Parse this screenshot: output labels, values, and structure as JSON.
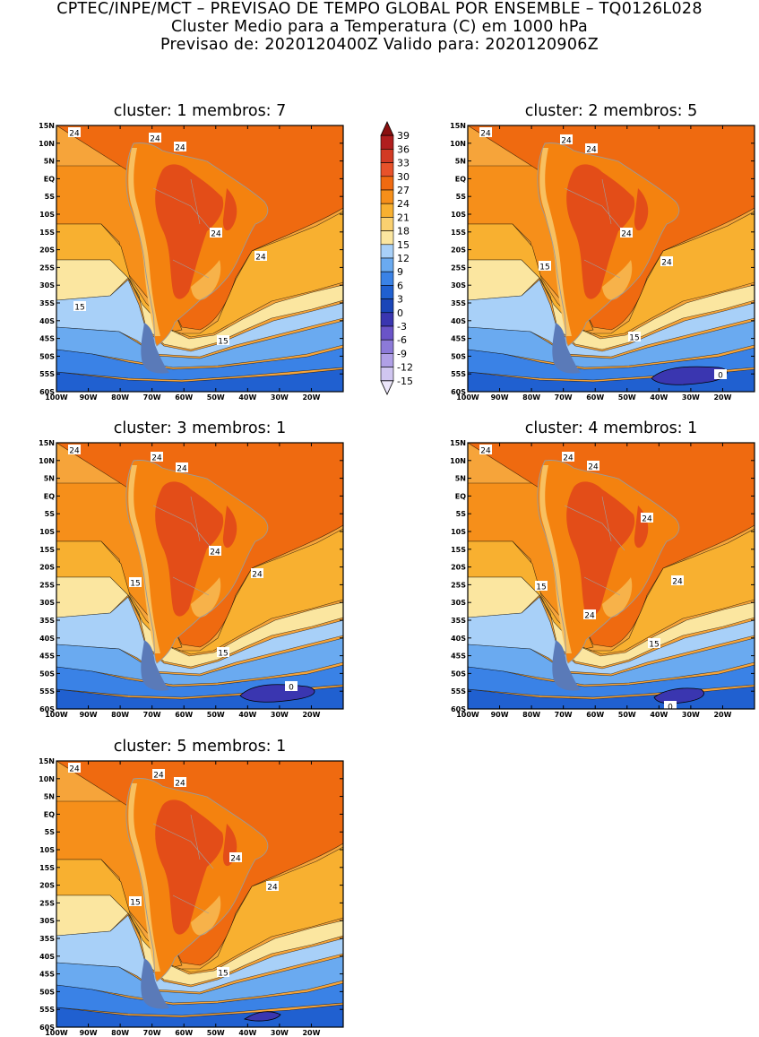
{
  "header": {
    "line1": "CPTEC/INPE/MCT – PREVISAO DE TEMPO GLOBAL POR ENSEMBLE – TQ0126L028",
    "line2": "Cluster Medio para a Temperatura (C) em 1000 hPa",
    "line3": "Previsao de: 2020120400Z    Valido para: 2020120906Z"
  },
  "map_axes": {
    "lat_labels": [
      "15N",
      "10N",
      "5N",
      "EQ",
      "5S",
      "10S",
      "15S",
      "20S",
      "25S",
      "30S",
      "35S",
      "40S",
      "45S",
      "50S",
      "55S",
      "60S"
    ],
    "lon_labels": [
      "100W",
      "90W",
      "80W",
      "70W",
      "60W",
      "50W",
      "40W",
      "30W",
      "20W"
    ],
    "lat_range": [
      -60,
      15
    ],
    "lon_range": [
      -100,
      -10
    ]
  },
  "panels": [
    {
      "title": "cluster: 1   membros: 7",
      "contour_labels": [
        "24",
        "24",
        "24",
        "24",
        "24",
        "15",
        "15"
      ]
    },
    {
      "title": "cluster: 2   membros: 5",
      "contour_labels": [
        "24",
        "24",
        "24",
        "24",
        "24",
        "15",
        "15",
        "0"
      ]
    },
    {
      "title": "cluster: 3   membros: 1",
      "contour_labels": [
        "24",
        "24",
        "24",
        "24",
        "24",
        "15",
        "15",
        "0"
      ]
    },
    {
      "title": "cluster: 4   membros: 1",
      "contour_labels": [
        "24",
        "24",
        "24",
        "24",
        "24",
        "24",
        "15",
        "15",
        "0"
      ]
    },
    {
      "title": "cluster: 5   membros: 1",
      "contour_labels": [
        "24",
        "24",
        "24",
        "24",
        "24",
        "15",
        "15"
      ]
    }
  ],
  "colorbar": {
    "labels": [
      "39",
      "36",
      "33",
      "30",
      "27",
      "24",
      "21",
      "18",
      "15",
      "12",
      "9",
      "6",
      "3",
      "0",
      "-3",
      "-6",
      "-9",
      "-12",
      "-15"
    ],
    "colors": [
      "#8a1010",
      "#b01e1e",
      "#d23a24",
      "#e8522a",
      "#f06a10",
      "#f68f1a",
      "#f8b030",
      "#fad070",
      "#fbe6a0",
      "#a8d0f8",
      "#6aaaf0",
      "#3a82e6",
      "#2060d0",
      "#1a46b8",
      "#3a36b0",
      "#6a54c8",
      "#8c7ad8",
      "#b0a0e6",
      "#d0c6f0",
      "#ece6fa"
    ]
  }
}
